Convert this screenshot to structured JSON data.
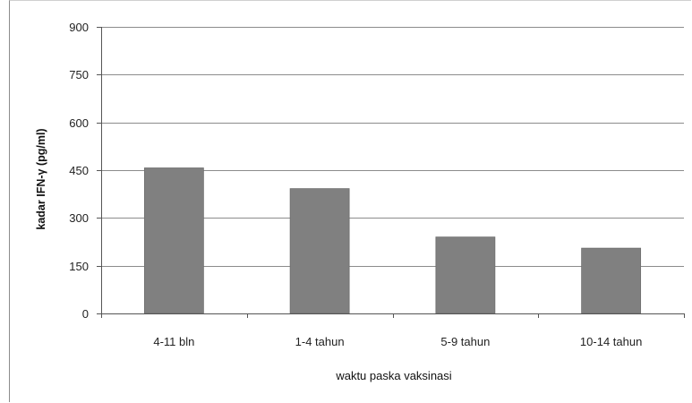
{
  "chart_data": {
    "type": "bar",
    "title": "",
    "xlabel": "waktu paska vaksinasi",
    "ylabel": "kadar IFN-γ (pg/ml)",
    "categories": [
      "4-11 bln",
      "1-4 tahun",
      "5-9 tahun",
      "10-14 tahun"
    ],
    "values": [
      457,
      392,
      240,
      205
    ],
    "ylim": [
      0,
      900
    ],
    "yticks": [
      0,
      150,
      300,
      450,
      600,
      750,
      900
    ],
    "grid": true,
    "bar_color": "#808080",
    "grid_color": "#8c8c8c"
  }
}
